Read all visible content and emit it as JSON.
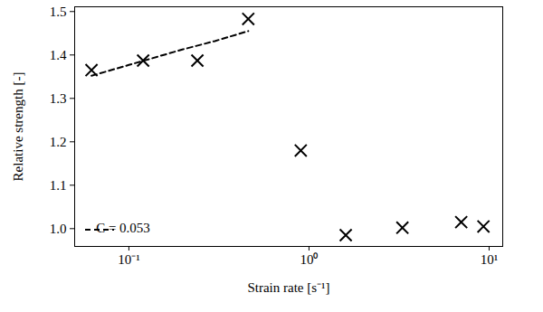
{
  "chart_data": {
    "type": "scatter",
    "x_label": "Strain rate [s⁻¹]",
    "y_label": "Relative strength [-]",
    "log": "x",
    "grid": false,
    "legend": "lower left",
    "xlim": [
      0.05,
      11.9
    ],
    "ylim": [
      0.959,
      1.511
    ],
    "xticks": [
      {
        "value": 0.1,
        "label": "10⁻¹"
      },
      {
        "value": 1,
        "label": "10⁰"
      },
      {
        "value": 10,
        "label": "10¹"
      }
    ],
    "yticks": [
      {
        "value": 1,
        "label": "1.0"
      },
      1.1,
      1.2,
      1.3,
      1.4,
      1.5
    ],
    "series": [
      {
        "type": "scatter",
        "marker": "x",
        "color": "#000000",
        "x": [
          0.062,
          0.12,
          0.24,
          0.46,
          0.9,
          1.6,
          3.3,
          7.0,
          9.3
        ],
        "values": [
          1.365,
          1.387,
          1.387,
          1.483,
          1.18,
          0.985,
          1.002,
          1.015,
          1.005
        ]
      },
      {
        "name": "C = 0.053",
        "type": "line",
        "line_style": "dashed",
        "color": "#000000",
        "x": [
          0.062,
          0.1,
          0.2,
          0.3,
          0.46
        ],
        "values": [
          1.352,
          1.377,
          1.413,
          1.432,
          1.455
        ]
      }
    ]
  }
}
